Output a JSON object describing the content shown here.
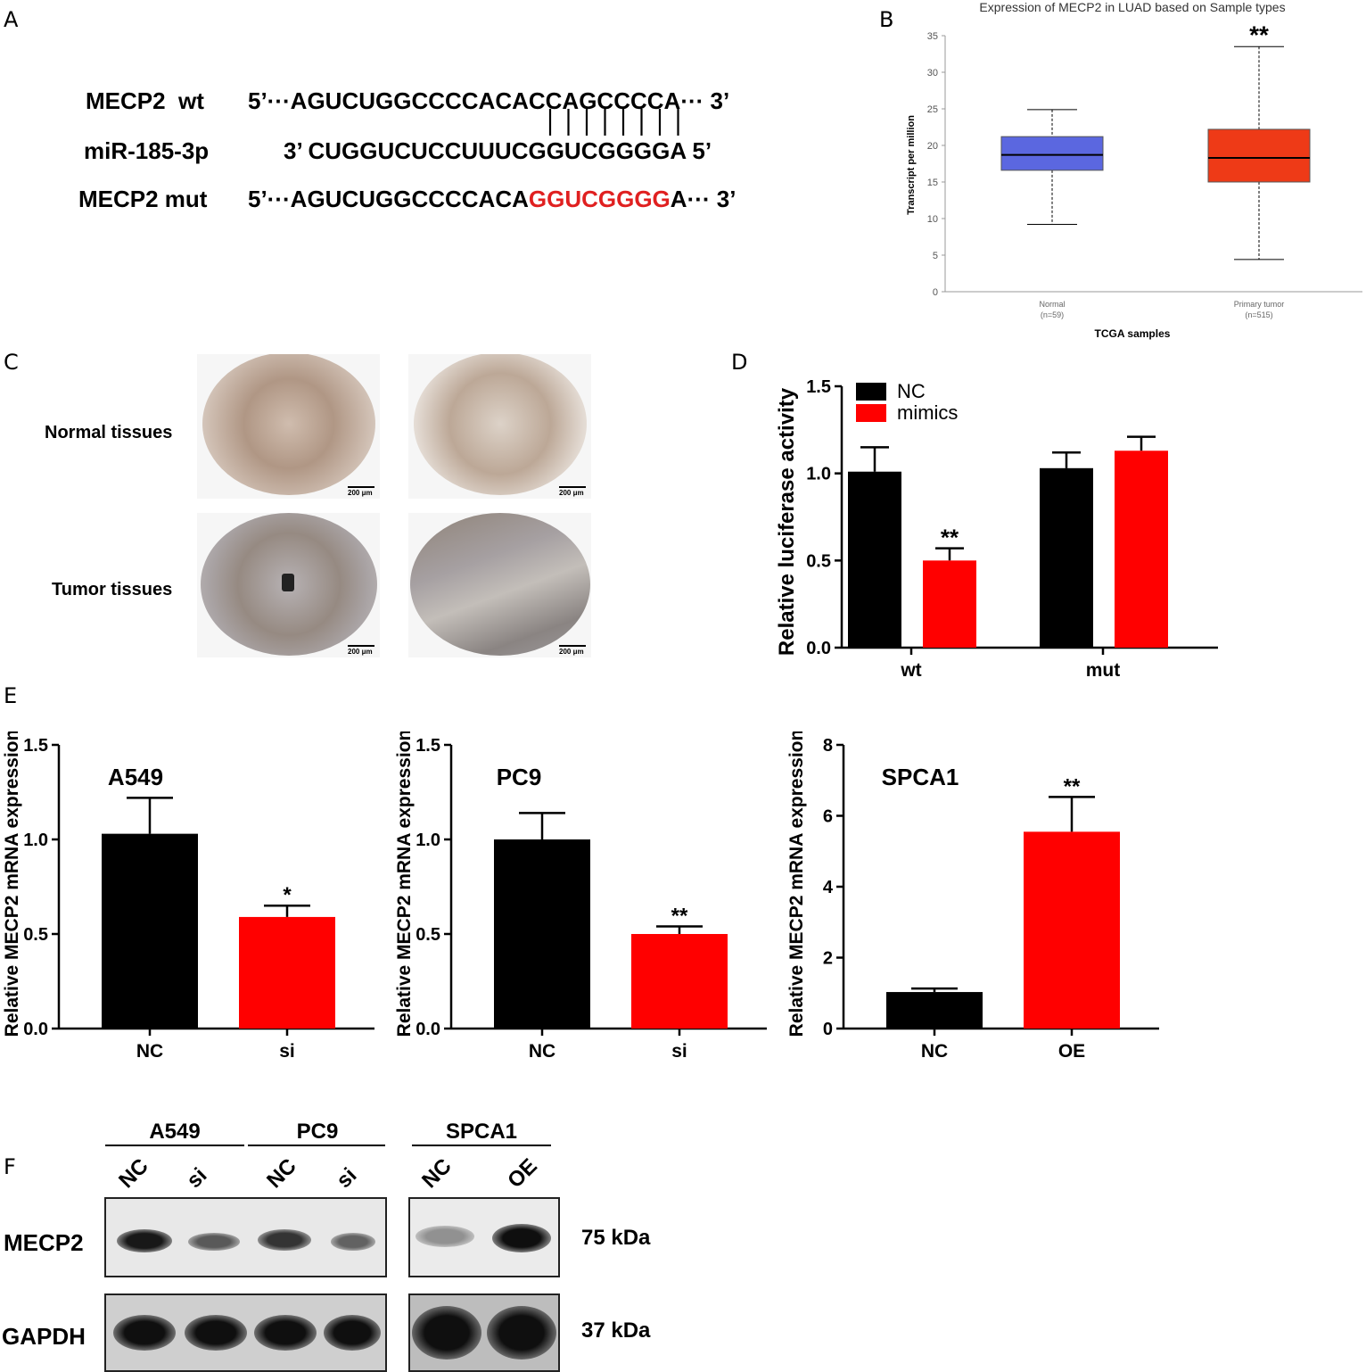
{
  "panels": {
    "A": "A",
    "B": "B",
    "C": "C",
    "D": "D",
    "E": "E",
    "F": "F"
  },
  "panelA": {
    "rows": [
      {
        "name": "MECP2  wt",
        "prefix": "5’···",
        "seq": "AGUCUGGCCCCACACCAGCCCCA",
        "red": "",
        "tail": "",
        "suffix": "··· 3’"
      },
      {
        "name": "miR-185-3p",
        "prefix": "3’ ",
        "seq": "CUGGUCUCCUUUCGGUCGGGGA",
        "red": "",
        "tail": "",
        "suffix": " 5’"
      },
      {
        "name": "MECP2 mut",
        "prefix": "5’···",
        "seq": "AGUCUGGCCCCACA",
        "red": "GGUCGGGG",
        "tail": "A",
        "suffix": "··· 3’"
      }
    ],
    "pairing_lines": 8
  },
  "panelB": {
    "chart_data": {
      "type": "box",
      "title": "Expression of MECP2 in LUAD based on Sample types",
      "xlabel": "TCGA samples",
      "ylabel": "Transcript per million",
      "ylim": [
        0,
        35
      ],
      "yticks": [
        0,
        5,
        10,
        15,
        20,
        25,
        30,
        35
      ],
      "categories": [
        {
          "label": "Normal",
          "n": "(n=59)",
          "color": "#5b67e0",
          "min": 9.2,
          "q1": 16.6,
          "median": 18.7,
          "q3": 21.2,
          "max": 24.9
        },
        {
          "label": "Primary tumor",
          "n": "(n=515)",
          "color": "#ee3a17",
          "min": 4.4,
          "q1": 15.0,
          "median": 18.3,
          "q3": 22.2,
          "max": 33.5
        }
      ],
      "significance": "**"
    }
  },
  "panelC": {
    "row_labels": [
      "Normal tissues",
      "Tumor tissues"
    ],
    "scale": "200 μm"
  },
  "panelD": {
    "chart_data": {
      "type": "bar",
      "categories": [
        "wt",
        "mut"
      ],
      "series": [
        {
          "name": "NC",
          "color": "#000000",
          "values": [
            1.01,
            1.03
          ],
          "errors": [
            0.14,
            0.09
          ]
        },
        {
          "name": "mimics",
          "color": "#ff0000",
          "values": [
            0.5,
            1.13
          ],
          "errors": [
            0.07,
            0.08
          ]
        }
      ],
      "ylabel": "Relative luciferase activity",
      "ylim": [
        0,
        1.5
      ],
      "yticks": [
        "0.0",
        "0.5",
        "1.0",
        "1.5"
      ],
      "annotations": [
        {
          "series": 1,
          "category": 0,
          "text": "**"
        }
      ],
      "legend": "top-left"
    }
  },
  "panelE": {
    "chart_data": [
      {
        "type": "bar",
        "title": "A549",
        "categories": [
          "NC",
          "si"
        ],
        "values": [
          1.03,
          0.59
        ],
        "errors": [
          0.19,
          0.06
        ],
        "colors": [
          "#000000",
          "#ff0000"
        ],
        "ylabel": "Relative MECP2 mRNA expression",
        "ylim": [
          0,
          1.5
        ],
        "yticks": [
          "0.0",
          "0.5",
          "1.0",
          "1.5"
        ],
        "sig": [
          "",
          "*"
        ]
      },
      {
        "type": "bar",
        "title": "PC9",
        "categories": [
          "NC",
          "si"
        ],
        "values": [
          1.0,
          0.5
        ],
        "errors": [
          0.14,
          0.04
        ],
        "colors": [
          "#000000",
          "#ff0000"
        ],
        "ylabel": "Relative MECP2 mRNA expression",
        "ylim": [
          0,
          1.5
        ],
        "yticks": [
          "0.0",
          "0.5",
          "1.0",
          "1.5"
        ],
        "sig": [
          "",
          "**"
        ]
      },
      {
        "type": "bar",
        "title": "SPCA1",
        "categories": [
          "NC",
          "OE"
        ],
        "values": [
          1.03,
          5.55
        ],
        "errors": [
          0.1,
          0.98
        ],
        "colors": [
          "#000000",
          "#ff0000"
        ],
        "ylabel": "Relative MECP2 mRNA expression",
        "ylim": [
          0,
          8
        ],
        "yticks": [
          "0",
          "2",
          "4",
          "6",
          "8"
        ],
        "sig": [
          "",
          "**"
        ]
      }
    ]
  },
  "panelF": {
    "groups": [
      "A549",
      "PC9",
      "SPCA1"
    ],
    "lanes": [
      "NC",
      "si",
      "NC",
      "si",
      "NC",
      "OE"
    ],
    "proteins": [
      {
        "name": "MECP2",
        "kda": "75 kDa",
        "intensity": [
          0.95,
          0.6,
          0.8,
          0.55,
          0.3,
          1.0
        ]
      },
      {
        "name": "GAPDH",
        "kda": "37 kDa",
        "intensity": [
          1.0,
          1.0,
          1.0,
          1.0,
          1.0,
          1.0
        ]
      }
    ]
  }
}
